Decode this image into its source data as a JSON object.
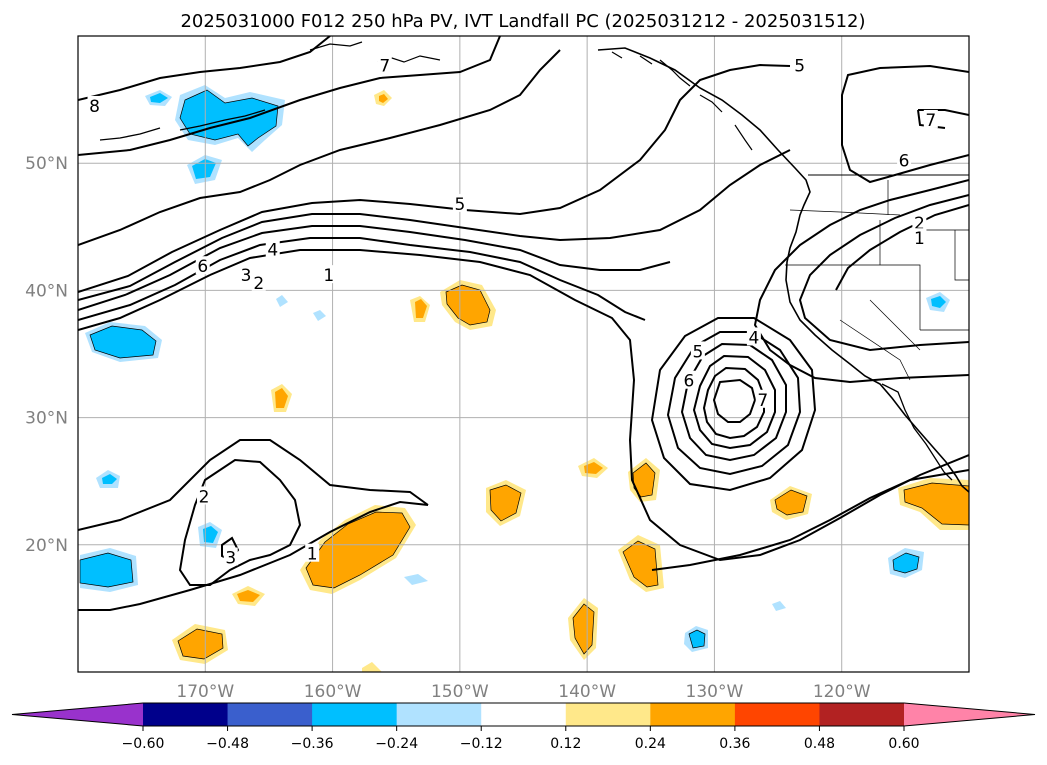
{
  "chart_data": {
    "type": "contour-map",
    "title": "2025031000 F012 250 hPa PV, IVT Landfall PC (2025031212 - 2025031512)",
    "x_axis": {
      "range": [
        -180,
        -110
      ],
      "ticks": [
        -170,
        -160,
        -150,
        -140,
        -130,
        -120
      ],
      "tick_labels": [
        "170°W",
        "160°W",
        "150°W",
        "140°W",
        "130°W",
        "120°W"
      ]
    },
    "y_axis": {
      "range": [
        10,
        60
      ],
      "ticks": [
        20,
        30,
        40,
        50
      ],
      "tick_labels": [
        "20°N",
        "30°N",
        "40°N",
        "50°N"
      ]
    },
    "grid": true,
    "colorbar": {
      "orientation": "horizontal",
      "placement": "bottom",
      "extend": "both",
      "levels": [
        -0.6,
        -0.48,
        -0.36,
        -0.24,
        -0.12,
        0.12,
        0.24,
        0.36,
        0.48,
        0.6
      ],
      "tick_labels": [
        "−0.60",
        "−0.48",
        "−0.36",
        "−0.24",
        "−0.12",
        "0.12",
        "0.24",
        "0.36",
        "0.48",
        "0.60"
      ],
      "colors": [
        "#9932cc",
        "#00008b",
        "#3a5fcd",
        "#00bfff",
        "#b0e2ff",
        "#ffffff",
        "#ffe88a",
        "#ffa500",
        "#ff4500",
        "#b22222",
        "#ff83a8"
      ]
    },
    "pv_contour_labels": [
      {
        "text": "8",
        "lon": -178.7,
        "lat": 54.5
      },
      {
        "text": "7",
        "lon": -155.9,
        "lat": 57.7
      },
      {
        "text": "5",
        "lon": -123.3,
        "lat": 57.7
      },
      {
        "text": "7",
        "lon": -113.0,
        "lat": 53.4
      },
      {
        "text": "6",
        "lon": -115.1,
        "lat": 50.2
      },
      {
        "text": "5",
        "lon": -150.0,
        "lat": 46.8
      },
      {
        "text": "2",
        "lon": -113.9,
        "lat": 45.3
      },
      {
        "text": "1",
        "lon": -113.9,
        "lat": 44.1
      },
      {
        "text": "4",
        "lon": -164.7,
        "lat": 43.2
      },
      {
        "text": "6",
        "lon": -170.2,
        "lat": 41.9
      },
      {
        "text": "3",
        "lon": -166.8,
        "lat": 41.2
      },
      {
        "text": "2",
        "lon": -165.8,
        "lat": 40.6
      },
      {
        "text": "1",
        "lon": -160.3,
        "lat": 41.2
      },
      {
        "text": "4",
        "lon": -126.9,
        "lat": 36.3
      },
      {
        "text": "5",
        "lon": -131.3,
        "lat": 35.2
      },
      {
        "text": "6",
        "lon": -132.0,
        "lat": 32.9
      },
      {
        "text": "7",
        "lon": -126.2,
        "lat": 31.4
      },
      {
        "text": "2",
        "lon": -170.1,
        "lat": 23.8
      },
      {
        "text": "3",
        "lon": -168.0,
        "lat": 19.0
      },
      {
        "text": "1",
        "lon": -161.6,
        "lat": 19.3
      }
    ]
  }
}
